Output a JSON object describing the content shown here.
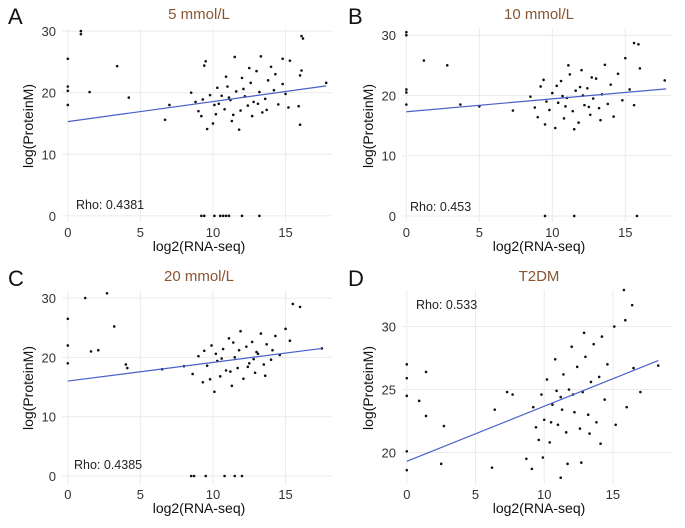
{
  "chart_data": [
    {
      "panel": "A",
      "type": "scatter",
      "title": "5 mmol/L",
      "xlabel": "log2(RNA-seq)",
      "ylabel": "log(ProteinM)",
      "annotation": "Rho: 0.4381",
      "xlim": [
        -0.4,
        18.2
      ],
      "ylim": [
        -1,
        30.5
      ],
      "xticks": [
        0,
        5,
        10,
        15
      ],
      "yticks": [
        0,
        10,
        20,
        30
      ],
      "grid": true,
      "point_color": "#111111",
      "fit_color": "#4a5fc8",
      "fit_line": [
        [
          0,
          15.3
        ],
        [
          17.8,
          21.1
        ]
      ],
      "points": [
        [
          0,
          25.5
        ],
        [
          0,
          21
        ],
        [
          0,
          20.3
        ],
        [
          0,
          18
        ],
        [
          0.9,
          30
        ],
        [
          0.9,
          29.5
        ],
        [
          1.5,
          20.1
        ],
        [
          3.4,
          24.3
        ],
        [
          4.2,
          19.2
        ],
        [
          6.7,
          15.6
        ],
        [
          7,
          18
        ],
        [
          9.2,
          0
        ],
        [
          9.4,
          0
        ],
        [
          10.1,
          0
        ],
        [
          10.5,
          0
        ],
        [
          10.7,
          0
        ],
        [
          10.9,
          0
        ],
        [
          11.1,
          0
        ],
        [
          12,
          0
        ],
        [
          13.2,
          0
        ],
        [
          16.1,
          29.2
        ],
        [
          16.2,
          28.8
        ],
        [
          17.8,
          21.6
        ],
        [
          16,
          14.8
        ],
        [
          15.9,
          17.8
        ],
        [
          9.5,
          25.1
        ],
        [
          9.4,
          24.4
        ],
        [
          11.5,
          25.8
        ],
        [
          13.3,
          25.9
        ],
        [
          14.8,
          25.5
        ],
        [
          15.3,
          25.2
        ],
        [
          16.1,
          23.6
        ],
        [
          16,
          22.8
        ],
        [
          8.5,
          20
        ],
        [
          8.8,
          18.5
        ],
        [
          9,
          17
        ],
        [
          9.2,
          16.2
        ],
        [
          9.6,
          14.1
        ],
        [
          10,
          15
        ],
        [
          10.2,
          16.5
        ],
        [
          10.4,
          18.2
        ],
        [
          10.6,
          19.5
        ],
        [
          10.8,
          17.3
        ],
        [
          11,
          21
        ],
        [
          11.2,
          18.8
        ],
        [
          11.4,
          16.4
        ],
        [
          11.6,
          20.2
        ],
        [
          11.8,
          14
        ],
        [
          12,
          22.4
        ],
        [
          12.2,
          19.4
        ],
        [
          12.4,
          17.9
        ],
        [
          12.6,
          21.6
        ],
        [
          12.8,
          18.5
        ],
        [
          13,
          23.5
        ],
        [
          13.2,
          20.1
        ],
        [
          13.4,
          16.8
        ],
        [
          13.6,
          19
        ],
        [
          13.8,
          22
        ],
        [
          14,
          24.2
        ],
        [
          14.2,
          20.4
        ],
        [
          14.5,
          18.1
        ],
        [
          14.8,
          21.4
        ],
        [
          15,
          19.8
        ],
        [
          15.2,
          17.6
        ],
        [
          9.8,
          19.6
        ],
        [
          10.3,
          20.8
        ],
        [
          10.9,
          22.6
        ],
        [
          11.3,
          15.4
        ],
        [
          11.9,
          17.1
        ],
        [
          12.5,
          24
        ],
        [
          13.1,
          18.2
        ],
        [
          13.7,
          17.2
        ],
        [
          10.1,
          18
        ],
        [
          11.1,
          19.2
        ],
        [
          12.1,
          20.6
        ],
        [
          9.3,
          18.9
        ],
        [
          12.7,
          16.2
        ],
        [
          14.3,
          23
        ]
      ]
    },
    {
      "panel": "B",
      "type": "scatter",
      "title": "10 mmol/L",
      "xlabel": "log2(RNA-seq)",
      "ylabel": "log(ProteinM)",
      "annotation": "Rho: 0.453",
      "xlim": [
        -0.3,
        18.2
      ],
      "ylim": [
        -1,
        31.2
      ],
      "xticks": [
        0,
        5,
        10,
        15
      ],
      "yticks": [
        0,
        10,
        20,
        30
      ],
      "grid": true,
      "point_color": "#111111",
      "fit_color": "#4a5fc8",
      "fit_line": [
        [
          0,
          17.3
        ],
        [
          17.8,
          21.1
        ]
      ],
      "points": [
        [
          0,
          30.5
        ],
        [
          0,
          30
        ],
        [
          0,
          21
        ],
        [
          0,
          20.5
        ],
        [
          0,
          18.5
        ],
        [
          1.2,
          25.8
        ],
        [
          2.8,
          25
        ],
        [
          3.7,
          18.5
        ],
        [
          5,
          18.2
        ],
        [
          9.5,
          0
        ],
        [
          11.5,
          0
        ],
        [
          15.8,
          0
        ],
        [
          15.6,
          28.7
        ],
        [
          15.9,
          28.5
        ],
        [
          17.7,
          22.5
        ],
        [
          7.3,
          17.5
        ],
        [
          8.5,
          19.8
        ],
        [
          8.8,
          18
        ],
        [
          9,
          16.4
        ],
        [
          9.2,
          21.5
        ],
        [
          9.5,
          15.2
        ],
        [
          9.8,
          17.6
        ],
        [
          10,
          20.4
        ],
        [
          10.2,
          14.6
        ],
        [
          10.4,
          18.8
        ],
        [
          10.6,
          22.4
        ],
        [
          10.8,
          16.2
        ],
        [
          11,
          19.6
        ],
        [
          11.2,
          23.5
        ],
        [
          11.4,
          17.4
        ],
        [
          11.6,
          20.8
        ],
        [
          11.8,
          15.5
        ],
        [
          12,
          24.2
        ],
        [
          12.2,
          18.4
        ],
        [
          12.4,
          21.2
        ],
        [
          12.6,
          16.8
        ],
        [
          12.8,
          19.5
        ],
        [
          13,
          22.8
        ],
        [
          13.2,
          17.9
        ],
        [
          13.4,
          20.2
        ],
        [
          13.6,
          25.1
        ],
        [
          13.8,
          18.6
        ],
        [
          14,
          21.8
        ],
        [
          14.2,
          16.5
        ],
        [
          14.5,
          23.6
        ],
        [
          14.8,
          19.2
        ],
        [
          15,
          26.2
        ],
        [
          15.3,
          21
        ],
        [
          15.6,
          18.4
        ],
        [
          16,
          24.5
        ],
        [
          9.6,
          19
        ],
        [
          10.3,
          21.6
        ],
        [
          10.9,
          18.2
        ],
        [
          11.5,
          14.4
        ],
        [
          12.1,
          20
        ],
        [
          12.7,
          23
        ],
        [
          13.3,
          15.9
        ],
        [
          9.4,
          22.6
        ],
        [
          11.1,
          25
        ],
        [
          12.5,
          18.1
        ],
        [
          10.7,
          19.9
        ],
        [
          11.9,
          21.4
        ]
      ]
    },
    {
      "panel": "C",
      "type": "scatter",
      "title": "20 mmol/L",
      "xlabel": "log2(RNA-seq)",
      "ylabel": "log(ProteinM)",
      "annotation": "Rho: 0.4385",
      "xlim": [
        -0.4,
        18.2
      ],
      "ylim": [
        -1.35,
        31.35
      ],
      "xticks": [
        0,
        5,
        10,
        15
      ],
      "yticks": [
        0,
        10,
        20,
        30
      ],
      "grid": true,
      "point_color": "#111111",
      "fit_color": "#4a5fc8",
      "fit_line": [
        [
          0,
          16
        ],
        [
          17.5,
          21.5
        ]
      ],
      "points": [
        [
          0,
          26.5
        ],
        [
          0,
          22
        ],
        [
          0,
          19
        ],
        [
          1.2,
          30
        ],
        [
          1.6,
          21
        ],
        [
          2.1,
          21.2
        ],
        [
          2.7,
          30.8
        ],
        [
          3.2,
          25.2
        ],
        [
          4,
          18.8
        ],
        [
          4.1,
          18.2
        ],
        [
          6.5,
          18
        ],
        [
          8.5,
          0
        ],
        [
          8.7,
          0
        ],
        [
          9.5,
          0
        ],
        [
          10.8,
          0
        ],
        [
          11.5,
          0
        ],
        [
          12,
          0
        ],
        [
          15.5,
          29
        ],
        [
          16,
          28.5
        ],
        [
          17.5,
          21.5
        ],
        [
          8,
          18.5
        ],
        [
          8.6,
          17.2
        ],
        [
          9,
          20.2
        ],
        [
          9.3,
          15.8
        ],
        [
          9.6,
          18.6
        ],
        [
          9.9,
          22
        ],
        [
          10.1,
          14.2
        ],
        [
          10.3,
          19.4
        ],
        [
          10.5,
          16.8
        ],
        [
          10.7,
          21.4
        ],
        [
          10.9,
          17.8
        ],
        [
          11.1,
          23.2
        ],
        [
          11.3,
          15.2
        ],
        [
          11.5,
          20
        ],
        [
          11.7,
          18.2
        ],
        [
          11.9,
          24.4
        ],
        [
          12.1,
          16.4
        ],
        [
          12.3,
          21.8
        ],
        [
          12.5,
          19
        ],
        [
          12.7,
          22.6
        ],
        [
          12.9,
          17.4
        ],
        [
          13.1,
          20.6
        ],
        [
          13.3,
          24
        ],
        [
          13.5,
          18.8
        ],
        [
          13.7,
          22.2
        ],
        [
          14,
          19.6
        ],
        [
          14.3,
          23.6
        ],
        [
          14.6,
          20.4
        ],
        [
          15,
          24.8
        ],
        [
          15.3,
          22.8
        ],
        [
          9.8,
          16.3
        ],
        [
          10.6,
          19.8
        ],
        [
          11.2,
          17.6
        ],
        [
          11.8,
          21.2
        ],
        [
          12.4,
          18.4
        ],
        [
          13,
          20.9
        ],
        [
          13.6,
          16.9
        ],
        [
          10.2,
          20.6
        ],
        [
          11.4,
          22.5
        ],
        [
          12.8,
          19.7
        ],
        [
          9.4,
          21.1
        ],
        [
          14.1,
          21.2
        ]
      ]
    },
    {
      "panel": "D",
      "type": "scatter",
      "title": "T2DM",
      "xlabel": "log2(RNA-seq)",
      "ylabel": "log(ProteinM)",
      "annotation": "Rho: 0.533",
      "xlim": [
        -0.35,
        19.3
      ],
      "ylim": [
        17.5,
        32.9
      ],
      "xticks": [
        0,
        5,
        10,
        15
      ],
      "yticks": [
        20,
        25,
        30
      ],
      "grid": true,
      "point_color": "#111111",
      "fit_color": "#4a5fc8",
      "fit_line": [
        [
          0,
          19.3
        ],
        [
          18.3,
          27.3
        ]
      ],
      "points": [
        [
          0,
          27
        ],
        [
          0,
          25.9
        ],
        [
          0,
          24.5
        ],
        [
          0,
          20.1
        ],
        [
          0,
          18.6
        ],
        [
          0.9,
          24.1
        ],
        [
          1.4,
          26.4
        ],
        [
          1.4,
          22.9
        ],
        [
          2.5,
          19.1
        ],
        [
          2.7,
          22.1
        ],
        [
          6.2,
          18.8
        ],
        [
          6.4,
          23.4
        ],
        [
          7.3,
          24.8
        ],
        [
          7.7,
          24.6
        ],
        [
          8.7,
          19.5
        ],
        [
          9.1,
          18.7
        ],
        [
          11.2,
          18
        ],
        [
          15.8,
          32.9
        ],
        [
          16.4,
          31.7
        ],
        [
          15.9,
          30.5
        ],
        [
          15.1,
          30
        ],
        [
          18.3,
          26.9
        ],
        [
          17,
          24.8
        ],
        [
          15.2,
          22.2
        ],
        [
          16.5,
          26.7
        ],
        [
          16,
          23.6
        ],
        [
          14.1,
          20.7
        ],
        [
          9.2,
          23.6
        ],
        [
          9.4,
          22
        ],
        [
          9.6,
          21
        ],
        [
          9.8,
          24.6
        ],
        [
          10,
          22.6
        ],
        [
          10.2,
          25.8
        ],
        [
          10.4,
          20.8
        ],
        [
          10.6,
          23.8
        ],
        [
          10.8,
          27.4
        ],
        [
          11,
          22.2
        ],
        [
          11.2,
          24.4
        ],
        [
          11.4,
          26.2
        ],
        [
          11.6,
          21.6
        ],
        [
          11.8,
          25
        ],
        [
          12,
          28.4
        ],
        [
          12.2,
          23.2
        ],
        [
          12.4,
          26.8
        ],
        [
          12.6,
          21.9
        ],
        [
          12.8,
          24.8
        ],
        [
          13,
          27.6
        ],
        [
          13.2,
          23
        ],
        [
          13.4,
          25.6
        ],
        [
          13.6,
          28.6
        ],
        [
          13.8,
          22.4
        ],
        [
          14,
          26
        ],
        [
          14.2,
          29.2
        ],
        [
          14.4,
          24.2
        ],
        [
          14.6,
          27
        ],
        [
          12.9,
          29.5
        ],
        [
          11.3,
          23.4
        ],
        [
          10.9,
          24.9
        ],
        [
          12.1,
          24.6
        ],
        [
          13.3,
          21.5
        ],
        [
          9.9,
          19.6
        ],
        [
          10.5,
          22.4
        ],
        [
          11.7,
          19.1
        ],
        [
          12.7,
          19.2
        ]
      ]
    }
  ]
}
